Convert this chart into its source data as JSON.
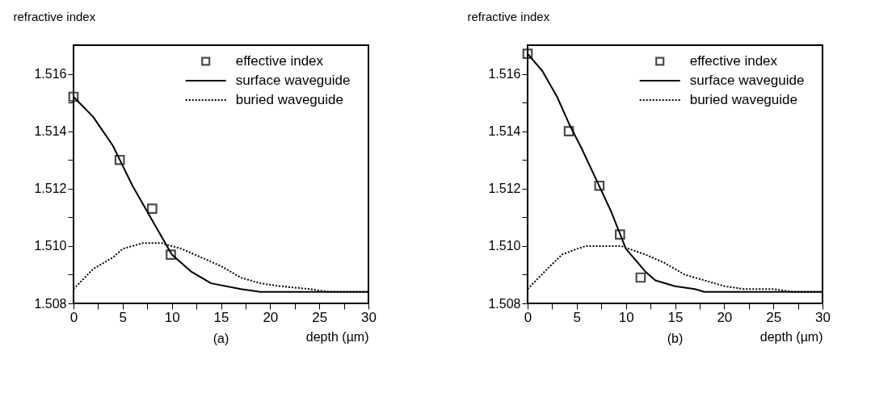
{
  "chart_data": [
    {
      "type": "line",
      "ylabel": "refractive index",
      "xlabel": "depth (µm)",
      "annotations": [
        "(a)"
      ],
      "legend": "top right",
      "xlim": [
        0,
        30
      ],
      "ylim": [
        1.508,
        1.517
      ],
      "xticks": [
        0,
        {
          "value": 2.5,
          "label": null
        },
        5,
        {
          "value": 7.5,
          "label": null
        },
        10,
        {
          "value": 12.5,
          "label": null
        },
        15,
        {
          "value": 17.5,
          "label": null
        },
        20,
        {
          "value": 22.5,
          "label": null
        },
        25,
        {
          "value": 27.5,
          "label": null
        },
        30
      ],
      "yticks": [
        1.508,
        {
          "value": 1.509,
          "label": null
        },
        {
          "value": 1.51,
          "label": "1.510"
        },
        {
          "value": 1.511,
          "label": null
        },
        1.512,
        {
          "value": 1.513,
          "label": null
        },
        1.514,
        {
          "value": 1.515,
          "label": null
        },
        1.516
      ],
      "grid": false,
      "series": [
        {
          "name": "effective index",
          "type": "scatter",
          "marker": "square",
          "color": "#000000",
          "x": [
            0,
            4.7,
            8.0,
            9.9
          ],
          "values": [
            1.5152,
            1.513,
            1.5113,
            1.5097
          ]
        },
        {
          "name": "surface waveguide",
          "line_style": "solid",
          "color": "#000000",
          "x": [
            0,
            2,
            4,
            5,
            6,
            8,
            10,
            12,
            14,
            17,
            19,
            30
          ],
          "values": [
            1.5152,
            1.5145,
            1.5135,
            1.5128,
            1.5121,
            1.5109,
            1.5097,
            1.5091,
            1.5087,
            1.5085,
            1.5084,
            1.5084
          ]
        },
        {
          "name": "buried waveguide",
          "line_style": "dotted",
          "color": "#000000",
          "x": [
            0,
            2,
            4,
            5,
            7,
            9,
            11,
            13,
            15,
            17,
            19,
            21,
            24,
            26,
            30
          ],
          "values": [
            1.5085,
            1.5092,
            1.5096,
            1.5099,
            1.5101,
            1.5101,
            1.5099,
            1.5096,
            1.5093,
            1.5089,
            1.5087,
            1.5086,
            1.5085,
            1.5084,
            1.5084
          ]
        }
      ]
    },
    {
      "type": "line",
      "ylabel": "refractive index",
      "xlabel": "depth (µm)",
      "annotations": [
        "(b)"
      ],
      "legend": "top right",
      "xlim": [
        0,
        30
      ],
      "ylim": [
        1.508,
        1.517
      ],
      "xticks": [
        0,
        {
          "value": 2.5,
          "label": null
        },
        5,
        {
          "value": 7.5,
          "label": null
        },
        10,
        {
          "value": 12.5,
          "label": null
        },
        15,
        {
          "value": 17.5,
          "label": null
        },
        20,
        {
          "value": 22.5,
          "label": null
        },
        25,
        {
          "value": 27.5,
          "label": null
        },
        30
      ],
      "yticks": [
        1.508,
        {
          "value": 1.509,
          "label": null
        },
        {
          "value": 1.51,
          "label": "1.510"
        },
        {
          "value": 1.511,
          "label": null
        },
        1.512,
        {
          "value": 1.513,
          "label": null
        },
        1.514,
        {
          "value": 1.515,
          "label": null
        },
        1.516
      ],
      "grid": false,
      "series": [
        {
          "name": "effective index",
          "type": "scatter",
          "marker": "square",
          "color": "#000000",
          "x": [
            0,
            4.2,
            7.3,
            9.4,
            11.5
          ],
          "values": [
            1.5167,
            1.514,
            1.5121,
            1.5104,
            1.5089
          ]
        },
        {
          "name": "surface waveguide",
          "line_style": "solid",
          "color": "#000000",
          "x": [
            0,
            1.5,
            3,
            4.3,
            5.5,
            7,
            8.5,
            10,
            12,
            13,
            15,
            17,
            18,
            30
          ],
          "values": [
            1.5167,
            1.5161,
            1.5152,
            1.5142,
            1.5134,
            1.5123,
            1.5112,
            1.5099,
            1.5091,
            1.5088,
            1.5086,
            1.5085,
            1.5084,
            1.5084
          ]
        },
        {
          "name": "buried waveguide",
          "line_style": "dotted",
          "color": "#000000",
          "x": [
            0,
            2,
            3.5,
            5,
            6,
            8,
            9.5,
            12,
            14,
            16,
            18,
            20,
            22,
            25,
            27,
            30
          ],
          "values": [
            1.5085,
            1.5092,
            1.5097,
            1.5099,
            1.51,
            1.51,
            1.51,
            1.5097,
            1.5094,
            1.509,
            1.5088,
            1.5086,
            1.5085,
            1.5085,
            1.5084,
            1.5084
          ]
        }
      ]
    }
  ]
}
